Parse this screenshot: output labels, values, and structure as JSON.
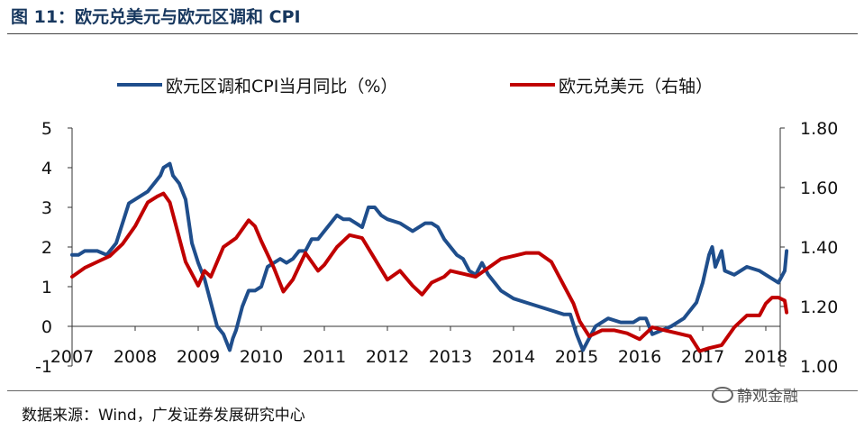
{
  "figure": {
    "title": "图 11：欧元兑美元与欧元区调和 CPI",
    "source": "数据来源：Wind，广发证券发展研究中心",
    "watermark": "静观金融"
  },
  "chart_data": {
    "type": "line",
    "legend_position": "top",
    "grid": false,
    "xlim": [
      2007.0,
      2018.33
    ],
    "ylim_left": [
      -1,
      5
    ],
    "ylim_right": [
      1.0,
      1.8
    ],
    "x_ticks": [
      2007,
      2008,
      2009,
      2010,
      2011,
      2012,
      2013,
      2014,
      2015,
      2016,
      2017,
      2018
    ],
    "y_ticks_left": [
      -1,
      0,
      1,
      2,
      3,
      4,
      5
    ],
    "y_ticks_right": [
      "1.00",
      "1.20",
      "1.40",
      "1.60",
      "1.80"
    ],
    "y_ticks_right_values": [
      1.0,
      1.2,
      1.4,
      1.6,
      1.8
    ],
    "series": [
      {
        "name": "欧元区调和CPI当月同比（%）",
        "axis": "left",
        "color": "#1f4e8c",
        "x": [
          2007.0,
          2007.1,
          2007.2,
          2007.4,
          2007.55,
          2007.7,
          2007.8,
          2007.9,
          2008.0,
          2008.2,
          2008.3,
          2008.4,
          2008.45,
          2008.55,
          2008.6,
          2008.7,
          2008.8,
          2008.9,
          2009.0,
          2009.1,
          2009.2,
          2009.3,
          2009.4,
          2009.5,
          2009.55,
          2009.6,
          2009.7,
          2009.8,
          2009.9,
          2010.0,
          2010.1,
          2010.2,
          2010.3,
          2010.4,
          2010.5,
          2010.6,
          2010.7,
          2010.8,
          2010.9,
          2011.0,
          2011.1,
          2011.2,
          2011.3,
          2011.4,
          2011.5,
          2011.6,
          2011.7,
          2011.8,
          2011.9,
          2012.0,
          2012.2,
          2012.4,
          2012.6,
          2012.7,
          2012.8,
          2012.9,
          2013.0,
          2013.1,
          2013.2,
          2013.3,
          2013.4,
          2013.5,
          2013.6,
          2013.8,
          2014.0,
          2014.2,
          2014.4,
          2014.6,
          2014.8,
          2014.9,
          2015.0,
          2015.1,
          2015.2,
          2015.3,
          2015.5,
          2015.7,
          2015.9,
          2016.0,
          2016.1,
          2016.2,
          2016.35,
          2016.5,
          2016.7,
          2016.9,
          2017.0,
          2017.1,
          2017.15,
          2017.2,
          2017.3,
          2017.35,
          2017.5,
          2017.7,
          2017.9,
          2018.0,
          2018.1,
          2018.2,
          2018.3,
          2018.33
        ],
        "y": [
          1.8,
          1.8,
          1.9,
          1.9,
          1.8,
          2.1,
          2.6,
          3.1,
          3.2,
          3.4,
          3.6,
          3.8,
          4.0,
          4.1,
          3.8,
          3.6,
          3.2,
          2.1,
          1.6,
          1.2,
          0.6,
          0.0,
          -0.2,
          -0.6,
          -0.3,
          -0.1,
          0.5,
          0.9,
          0.9,
          1.0,
          1.5,
          1.6,
          1.7,
          1.6,
          1.7,
          1.9,
          1.9,
          2.2,
          2.2,
          2.4,
          2.6,
          2.8,
          2.7,
          2.7,
          2.6,
          2.5,
          3.0,
          3.0,
          2.8,
          2.7,
          2.6,
          2.4,
          2.6,
          2.6,
          2.5,
          2.2,
          2.0,
          1.8,
          1.7,
          1.4,
          1.3,
          1.6,
          1.3,
          0.9,
          0.7,
          0.6,
          0.5,
          0.4,
          0.3,
          0.3,
          -0.2,
          -0.6,
          -0.3,
          0.0,
          0.2,
          0.1,
          0.1,
          0.2,
          0.2,
          -0.2,
          -0.1,
          0.0,
          0.2,
          0.6,
          1.1,
          1.8,
          2.0,
          1.5,
          1.9,
          1.4,
          1.3,
          1.5,
          1.4,
          1.3,
          1.2,
          1.1,
          1.4,
          1.9
        ]
      },
      {
        "name": "欧元兑美元（右轴）",
        "axis": "right",
        "color": "#c00000",
        "x": [
          2007.0,
          2007.2,
          2007.4,
          2007.6,
          2007.8,
          2008.0,
          2008.2,
          2008.35,
          2008.45,
          2008.55,
          2008.65,
          2008.8,
          2009.0,
          2009.1,
          2009.2,
          2009.4,
          2009.6,
          2009.8,
          2009.9,
          2010.0,
          2010.2,
          2010.35,
          2010.5,
          2010.7,
          2010.9,
          2011.0,
          2011.2,
          2011.4,
          2011.6,
          2011.8,
          2012.0,
          2012.2,
          2012.4,
          2012.55,
          2012.7,
          2012.9,
          2013.0,
          2013.2,
          2013.4,
          2013.6,
          2013.8,
          2014.0,
          2014.2,
          2014.4,
          2014.6,
          2014.8,
          2014.95,
          2015.05,
          2015.2,
          2015.4,
          2015.6,
          2015.8,
          2016.0,
          2016.2,
          2016.4,
          2016.6,
          2016.8,
          2016.95,
          2017.1,
          2017.3,
          2017.5,
          2017.7,
          2017.9,
          2018.0,
          2018.1,
          2018.2,
          2018.3,
          2018.33
        ],
        "y": [
          1.3,
          1.33,
          1.35,
          1.37,
          1.41,
          1.47,
          1.55,
          1.57,
          1.58,
          1.55,
          1.47,
          1.35,
          1.27,
          1.32,
          1.3,
          1.4,
          1.43,
          1.49,
          1.47,
          1.42,
          1.33,
          1.25,
          1.29,
          1.38,
          1.32,
          1.34,
          1.4,
          1.44,
          1.43,
          1.36,
          1.29,
          1.32,
          1.27,
          1.24,
          1.28,
          1.3,
          1.32,
          1.31,
          1.3,
          1.33,
          1.36,
          1.37,
          1.38,
          1.38,
          1.35,
          1.27,
          1.21,
          1.15,
          1.1,
          1.12,
          1.12,
          1.11,
          1.09,
          1.13,
          1.12,
          1.11,
          1.1,
          1.05,
          1.06,
          1.07,
          1.13,
          1.17,
          1.17,
          1.21,
          1.23,
          1.23,
          1.22,
          1.18
        ]
      }
    ]
  }
}
